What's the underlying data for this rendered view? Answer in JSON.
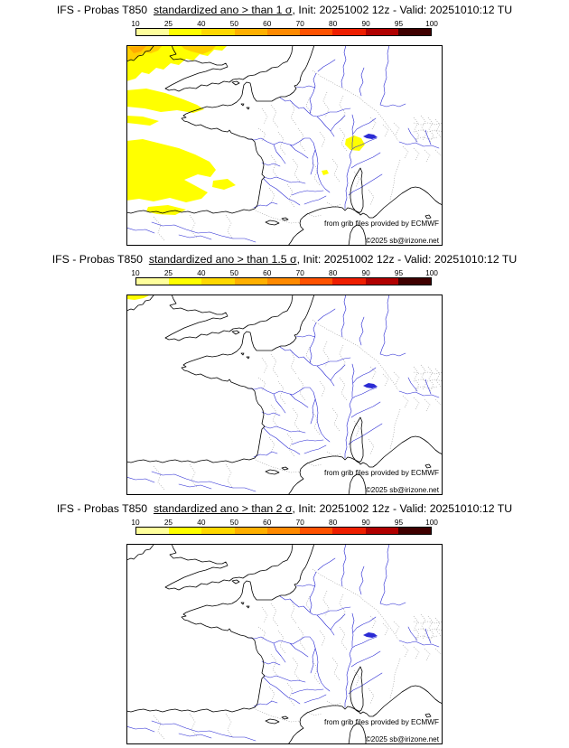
{
  "theme": {
    "coast": "#000000",
    "river": "#2b2bd4",
    "border": "#9a9a9a",
    "hl": "#ffff00",
    "hl2": "#ffd000",
    "hl3": "#ffaa00"
  },
  "colorbar": {
    "ticks": [
      "10",
      "25",
      "40",
      "50",
      "60",
      "70",
      "80",
      "90",
      "95",
      "100"
    ],
    "colors": [
      "#ffff9c",
      "#ffff00",
      "#ffd800",
      "#ffb000",
      "#ff8a00",
      "#ff5200",
      "#ee1e00",
      "#b00000",
      "#400000"
    ]
  },
  "map_credits": {
    "line1": "from grib files provided by ECMWF",
    "line2": "©2025 sb@irizone.net"
  },
  "panels": [
    {
      "id": "sigma-1",
      "title_prefix": "IFS - Probas T850  ",
      "title_emph": "standardized ano > than 1 σ",
      "title_suffix": ", Init: 20251002 12z - Valid: 20251010:12 TU"
    },
    {
      "id": "sigma-1.5",
      "title_prefix": "IFS - Probas T850  ",
      "title_emph": "standardized ano > than 1.5 σ",
      "title_suffix": ", Init: 20251002 12z - Valid: 20251010:12 TU"
    },
    {
      "id": "sigma-2",
      "title_prefix": "IFS - Probas T850  ",
      "title_emph": "standardized ano > than 2 σ",
      "title_suffix": ", Init: 20251002 12z - Valid: 20251010:12 TU"
    }
  ]
}
